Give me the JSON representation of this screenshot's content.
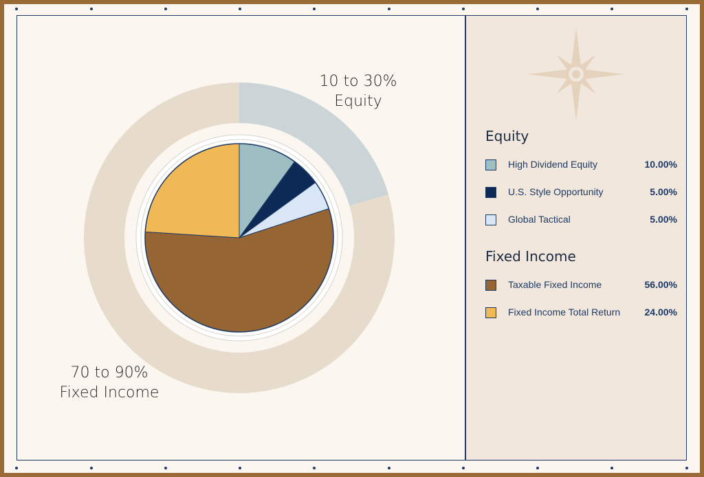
{
  "chart_data": {
    "type": "pie",
    "slices": [
      {
        "label": "High Dividend Equity",
        "value": 10.0,
        "display": "10.00%",
        "color": "#9dbfc3",
        "group": "Equity"
      },
      {
        "label": "U.S. Style Opportunity",
        "value": 5.0,
        "display": "5.00%",
        "color": "#0c2a55",
        "group": "Equity"
      },
      {
        "label": "Global Tactical",
        "value": 5.0,
        "display": "5.00%",
        "color": "#d8e6f6",
        "group": "Equity"
      },
      {
        "label": "Taxable Fixed Income",
        "value": 56.0,
        "display": "56.00%",
        "color": "#956634",
        "group": "Fixed Income"
      },
      {
        "label": "Fixed Income Total Return",
        "value": 24.0,
        "display": "24.00%",
        "color": "#f1b955",
        "group": "Fixed Income"
      }
    ],
    "outer_ring": [
      {
        "line1": "10 to 30%",
        "line2": "Equity",
        "share": 0.205,
        "color": "#cbd5d7"
      },
      {
        "line1": "70 to 90%",
        "line2": "Fixed Income",
        "share": 0.795,
        "color": "#e7dccb"
      }
    ]
  },
  "legend": {
    "groups": [
      {
        "heading": "Equity"
      },
      {
        "heading": "Fixed Income"
      }
    ]
  },
  "colors": {
    "frame": "#9a6a37",
    "navy": "#1d3a66",
    "background": "#fbf6f0",
    "sidebar": "#f1e7dc",
    "compass": "#e4d2bd"
  },
  "icons": {
    "decoration": "compass-rose-icon"
  }
}
